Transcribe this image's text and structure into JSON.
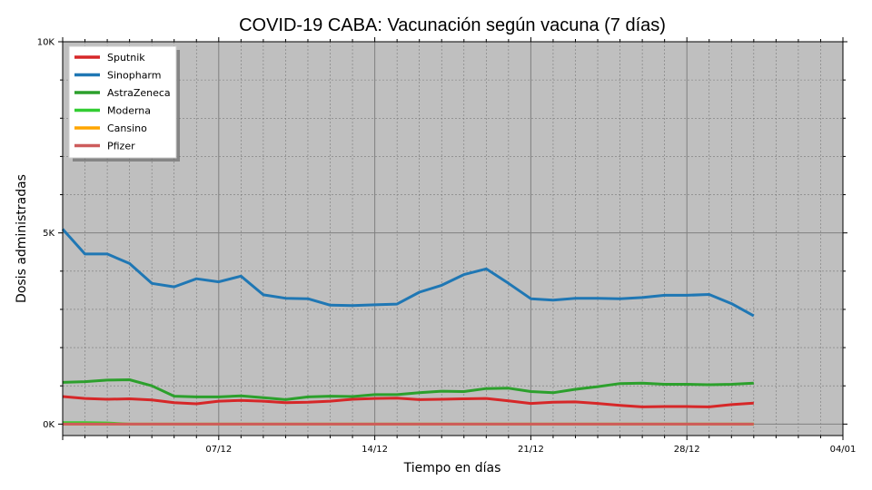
{
  "chart_data": {
    "type": "line",
    "title": "COVID-19 CABA: Vacunación según vacuna (7 días)",
    "xlabel": "Tiempo en días",
    "ylabel": "Dosis administradas",
    "x": [
      "30/11",
      "01/12",
      "02/12",
      "03/12",
      "04/12",
      "05/12",
      "06/12",
      "07/12",
      "08/12",
      "09/12",
      "10/12",
      "11/12",
      "12/12",
      "13/12",
      "14/12",
      "15/12",
      "16/12",
      "17/12",
      "18/12",
      "19/12",
      "20/12",
      "21/12",
      "22/12",
      "23/12",
      "24/12",
      "25/12",
      "26/12",
      "27/12",
      "28/12",
      "29/12",
      "30/12",
      "31/12"
    ],
    "xlim": [
      "30/11",
      "04/01"
    ],
    "ylim": [
      -300,
      10000
    ],
    "x_ticks": [
      "07/12",
      "14/12",
      "21/12",
      "28/12",
      "04/01"
    ],
    "y_ticks": [
      "0K",
      "5K",
      "10K"
    ],
    "y_tick_values": [
      0,
      5000,
      10000
    ],
    "grid": true,
    "legend_position": "top-left",
    "background": "#bfbfbf",
    "series": [
      {
        "name": "Sputnik",
        "color": "#d62728",
        "values": [
          720,
          670,
          650,
          660,
          630,
          560,
          530,
          600,
          620,
          600,
          560,
          570,
          600,
          650,
          670,
          680,
          640,
          650,
          660,
          670,
          610,
          540,
          570,
          580,
          540,
          490,
          450,
          460,
          460,
          450,
          510,
          550
        ]
      },
      {
        "name": "Sinopharm",
        "color": "#1f77b4",
        "values": [
          5100,
          4450,
          4450,
          4200,
          3680,
          3590,
          3800,
          3720,
          3870,
          3380,
          3290,
          3280,
          3110,
          3100,
          3120,
          3140,
          3450,
          3630,
          3910,
          4060,
          3680,
          3280,
          3240,
          3290,
          3290,
          3280,
          3310,
          3370,
          3370,
          3390,
          3150,
          2830
        ]
      },
      {
        "name": "AstraZeneca",
        "color": "#2ca02c",
        "values": [
          1090,
          1110,
          1150,
          1160,
          1000,
          730,
          710,
          710,
          740,
          690,
          640,
          710,
          730,
          720,
          770,
          770,
          820,
          860,
          850,
          930,
          940,
          850,
          820,
          910,
          980,
          1060,
          1070,
          1040,
          1040,
          1030,
          1040,
          1070
        ]
      },
      {
        "name": "Moderna",
        "color": "#32cd32",
        "values": [
          40,
          40,
          30,
          0,
          0,
          0,
          0,
          0,
          0,
          0,
          0,
          0,
          0,
          0,
          0,
          0,
          0,
          0,
          0,
          0,
          0,
          0,
          0,
          0,
          0,
          0,
          0,
          0,
          0,
          0,
          0,
          0
        ]
      },
      {
        "name": "Cansino",
        "color": "#ffa500",
        "values": [
          0,
          0,
          0,
          0,
          0,
          0,
          0,
          0,
          0,
          0,
          0,
          0,
          0,
          0,
          0,
          0,
          0,
          0,
          0,
          0,
          0,
          0,
          0,
          0,
          0,
          0,
          0,
          0,
          0,
          0,
          0,
          0
        ]
      },
      {
        "name": "Pfizer",
        "color": "#cd5c5c",
        "values": [
          0,
          0,
          0,
          0,
          0,
          0,
          0,
          0,
          0,
          0,
          0,
          0,
          0,
          0,
          0,
          0,
          0,
          0,
          0,
          0,
          0,
          0,
          0,
          0,
          0,
          0,
          0,
          0,
          0,
          0,
          0,
          0
        ]
      }
    ]
  }
}
